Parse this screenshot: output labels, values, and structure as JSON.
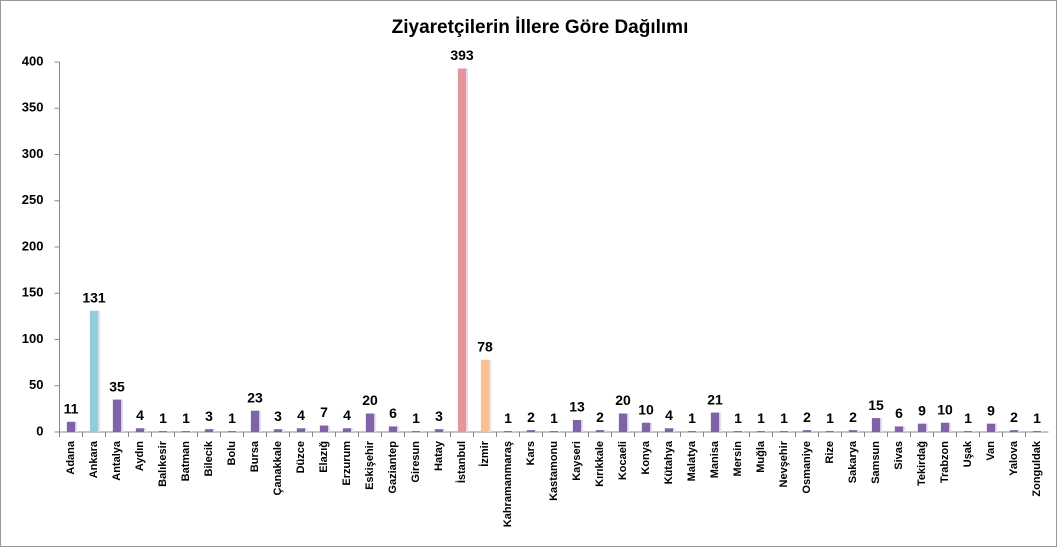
{
  "chart_data": {
    "type": "bar",
    "title": "Ziyaretçilerin İllere Göre Dağılımı",
    "categories": [
      "Adana",
      "Ankara",
      "Antalya",
      "Aydın",
      "Balıkesir",
      "Batman",
      "Bilecik",
      "Bolu",
      "Bursa",
      "Çanakkale",
      "Düzce",
      "Elazığ",
      "Erzurum",
      "Eskişehir",
      "Gaziantep",
      "Giresun",
      "Hatay",
      "İstanbul",
      "İzmir",
      "Kahramanmaraş",
      "Kars",
      "Kastamonu",
      "Kayseri",
      "Kırıkkale",
      "Kocaeli",
      "Konya",
      "Kütahya",
      "Malatya",
      "Manisa",
      "Mersin",
      "Muğla",
      "Nevşehir",
      "Osmaniye",
      "Rize",
      "Sakarya",
      "Samsun",
      "Sivas",
      "Tekirdağ",
      "Trabzon",
      "Uşak",
      "Van",
      "Yalova",
      "Zonguldak"
    ],
    "values": [
      11,
      131,
      35,
      4,
      1,
      1,
      3,
      1,
      23,
      3,
      4,
      7,
      4,
      20,
      6,
      1,
      3,
      393,
      78,
      1,
      2,
      1,
      13,
      2,
      20,
      10,
      4,
      1,
      21,
      1,
      1,
      1,
      2,
      1,
      2,
      15,
      6,
      9,
      10,
      1,
      9,
      2,
      1
    ],
    "color": "#7f62a8",
    "colors": [
      "#7f62a8",
      "#92cddc",
      "#7f62a8",
      "#7f62a8",
      "#7f62a8",
      "#7f62a8",
      "#7f62a8",
      "#7f62a8",
      "#7f62a8",
      "#7f62a8",
      "#7f62a8",
      "#7f62a8",
      "#7f62a8",
      "#7f62a8",
      "#7f62a8",
      "#7f62a8",
      "#7f62a8",
      "#e6959a",
      "#fac08f",
      "#7f62a8",
      "#7f62a8",
      "#7f62a8",
      "#7f62a8",
      "#7f62a8",
      "#7f62a8",
      "#7f62a8",
      "#7f62a8",
      "#7f62a8",
      "#7f62a8",
      "#7f62a8",
      "#7f62a8",
      "#7f62a8",
      "#7f62a8",
      "#7f62a8",
      "#7f62a8",
      "#7f62a8",
      "#7f62a8",
      "#7f62a8",
      "#7f62a8",
      "#7f62a8",
      "#7f62a8",
      "#7f62a8",
      "#7f62a8"
    ],
    "ylim": [
      0,
      400
    ],
    "yticks": [
      0,
      50,
      100,
      150,
      200,
      250,
      300,
      350,
      400
    ],
    "grid": false
  }
}
